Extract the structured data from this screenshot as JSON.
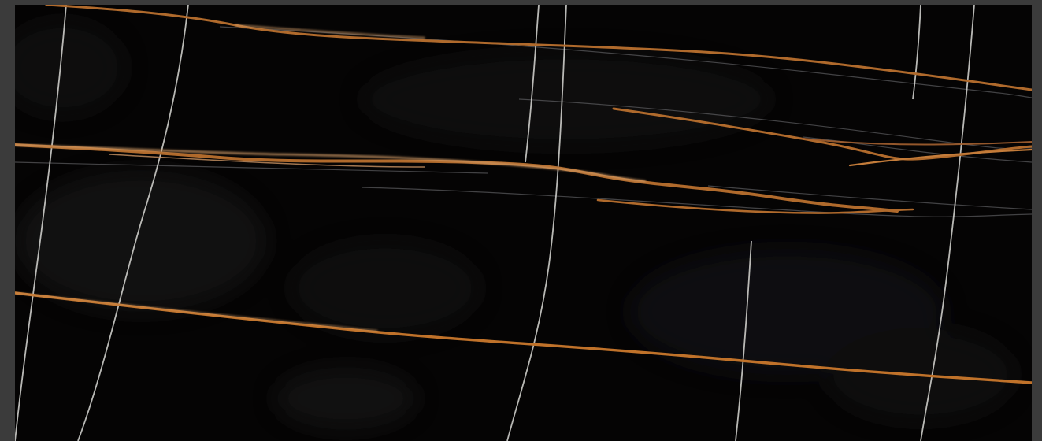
{
  "image": {
    "subject": "black-marble-slab-texture",
    "colors": {
      "frame": "#3b3b3b",
      "stone": "#050404",
      "stone_cloud": "#1a1a1c",
      "gold_vein": "#b06a2c",
      "gold_vein_light": "#d8a06a",
      "white_vein": "#d8d8d4",
      "grey_vein": "#6c6c70"
    }
  }
}
